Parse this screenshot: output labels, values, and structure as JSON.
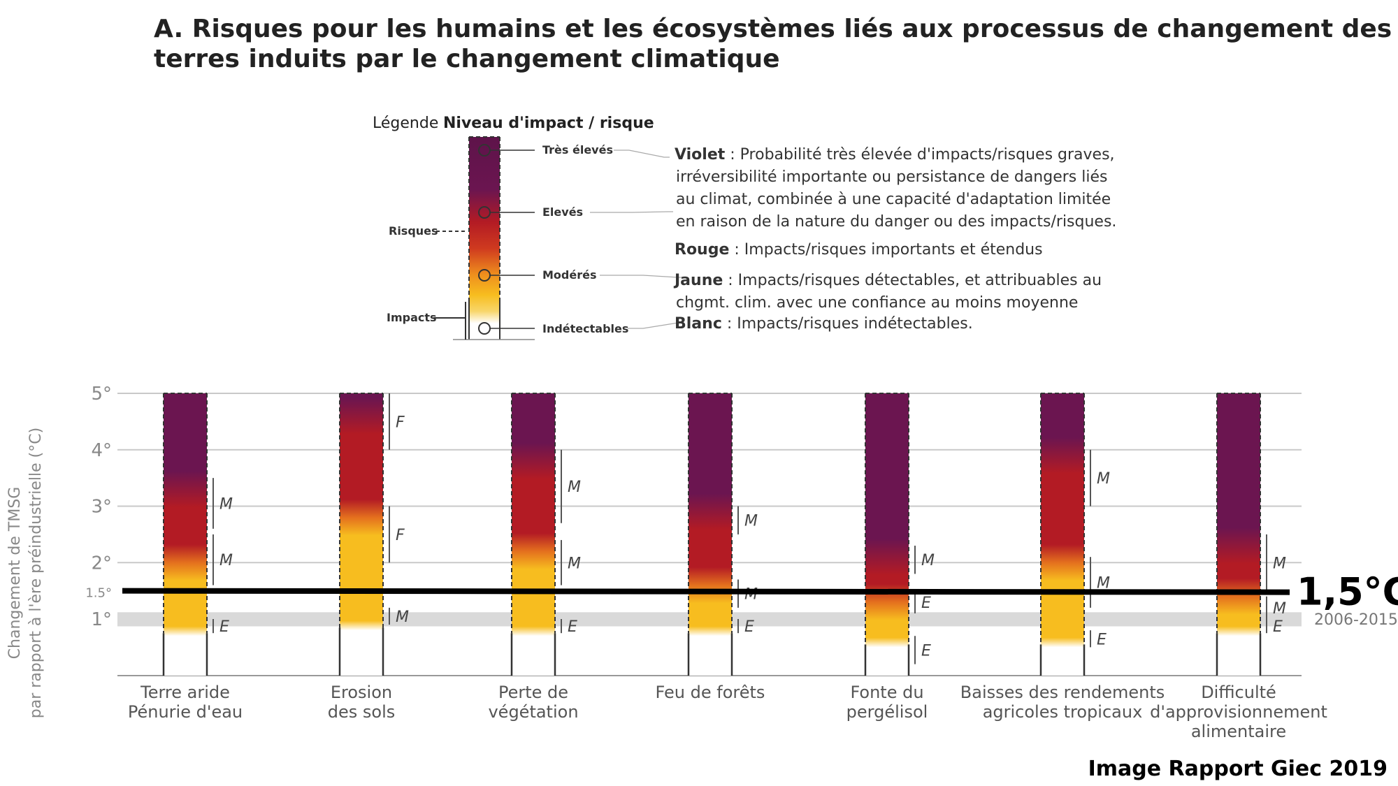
{
  "title_line1": "A. Risques pour les humains et les écosystèmes liés aux processus de changement des",
  "title_line2": "terres induits par le changement climatique",
  "legend": {
    "prefix": "Légende :",
    "heading": "Niveau d'impact / risque",
    "risques": "Risques",
    "impacts": "Impacts",
    "levels": [
      "Très élevés",
      "Elevés",
      "Modérés",
      "Indétectables"
    ],
    "descriptions": [
      {
        "color": "Violet",
        "lines": [
          ": Probabilité très élevée d'impacts/risques graves,",
          "irréversibilité importante ou persistance de dangers liés",
          "au climat, combinée à une capacité d'adaptation limitée",
          "en raison de la nature du danger ou des impacts/risques."
        ]
      },
      {
        "color": "Rouge",
        "lines": [
          ": Impacts/risques importants et étendus"
        ]
      },
      {
        "color": "Jaune",
        "lines": [
          ": Impacts/risques  détectables, et attribuables au",
          "chgmt. clim. avec une confiance au moins moyenne"
        ]
      },
      {
        "color": "Blanc",
        "lines": [
          "  : Impacts/risques indétectables."
        ]
      }
    ],
    "colors": {
      "purple": "#6b1550",
      "red": "#b31b24",
      "orange": "#e4701e",
      "yellow": "#f7bd1f",
      "white": "#ffffff"
    }
  },
  "chart_data": {
    "type": "bar",
    "ylabel_line1": "Changement de TMSG",
    "ylabel_line2": "par rapport à l'ère préindustrielle (°C)",
    "ylim": [
      0,
      5
    ],
    "yticks": [
      {
        "v": 1,
        "label": "1°"
      },
      {
        "v": 1.5,
        "label": "1.5°"
      },
      {
        "v": 2,
        "label": "2°"
      },
      {
        "v": 3,
        "label": "3°"
      },
      {
        "v": 4,
        "label": "4°"
      },
      {
        "v": 5,
        "label": "5°"
      }
    ],
    "reference_band": {
      "from": 0.87,
      "to": 1.12,
      "label": "2006-2015"
    },
    "threshold": {
      "value": 1.5,
      "label": "1,5°C"
    },
    "categories": [
      {
        "line1": "Terre aride",
        "line2": "Pénurie d'eau",
        "line3": "",
        "transitions": {
          "undetect_to_mod": 0.75,
          "mod_to_high": 2.0,
          "high_to_vhigh": 3.3
        },
        "confidence": [
          {
            "from": 0.75,
            "to": 1.0,
            "label": "E"
          },
          {
            "from": 1.6,
            "to": 2.5,
            "label": "M"
          },
          {
            "from": 2.6,
            "to": 3.5,
            "label": "M"
          }
        ]
      },
      {
        "line1": "Erosion",
        "line2": "des sols",
        "line3": "",
        "transitions": {
          "undetect_to_mod": 0.85,
          "mod_to_high": 2.8,
          "high_to_vhigh": 4.6
        },
        "confidence": [
          {
            "from": 0.9,
            "to": 1.2,
            "label": "M"
          },
          {
            "from": 2.0,
            "to": 3.0,
            "label": "F"
          },
          {
            "from": 4.0,
            "to": 5.0,
            "label": "F"
          }
        ]
      },
      {
        "line1": "Perte de",
        "line2": "végétation",
        "line3": "",
        "transitions": {
          "undetect_to_mod": 0.75,
          "mod_to_high": 2.2,
          "high_to_vhigh": 3.8
        },
        "confidence": [
          {
            "from": 0.75,
            "to": 1.0,
            "label": "E"
          },
          {
            "from": 1.6,
            "to": 2.4,
            "label": "M"
          },
          {
            "from": 2.7,
            "to": 4.0,
            "label": "M"
          }
        ]
      },
      {
        "line1": "Feu de forêts",
        "line2": "",
        "line3": "",
        "transitions": {
          "undetect_to_mod": 0.75,
          "mod_to_high": 1.6,
          "high_to_vhigh": 2.9
        },
        "confidence": [
          {
            "from": 0.75,
            "to": 1.0,
            "label": "E"
          },
          {
            "from": 1.2,
            "to": 1.7,
            "label": "M"
          },
          {
            "from": 2.5,
            "to": 3.0,
            "label": "M"
          }
        ]
      },
      {
        "line1": "Fonte du",
        "line2": "pergélisol",
        "line3": "",
        "transitions": {
          "undetect_to_mod": 0.55,
          "mod_to_high": 1.3,
          "high_to_vhigh": 2.1
        },
        "confidence": [
          {
            "from": 0.2,
            "to": 0.7,
            "label": "E"
          },
          {
            "from": 1.1,
            "to": 1.5,
            "label": "E"
          },
          {
            "from": 1.8,
            "to": 2.3,
            "label": "M"
          }
        ]
      },
      {
        "line1": "Baisses des rendements",
        "line2": "agricoles tropicaux",
        "line3": "",
        "transitions": {
          "undetect_to_mod": 0.55,
          "mod_to_high": 2.0,
          "high_to_vhigh": 3.9
        },
        "confidence": [
          {
            "from": 0.5,
            "to": 0.8,
            "label": "E"
          },
          {
            "from": 1.2,
            "to": 2.1,
            "label": "M"
          },
          {
            "from": 3.0,
            "to": 4.0,
            "label": "M"
          }
        ]
      },
      {
        "line1": "Difficulté",
        "line2": "d'approvisionnement",
        "line3": "alimentaire",
        "transitions": {
          "undetect_to_mod": 0.75,
          "mod_to_high": 1.4,
          "high_to_vhigh": 2.3
        },
        "confidence": [
          {
            "from": 0.75,
            "to": 1.0,
            "label": "E"
          },
          {
            "from": 1.0,
            "to": 1.4,
            "label": "M"
          },
          {
            "from": 1.5,
            "to": 2.5,
            "label": "M"
          }
        ]
      }
    ]
  },
  "source": "Image Rapport Giec 2019"
}
